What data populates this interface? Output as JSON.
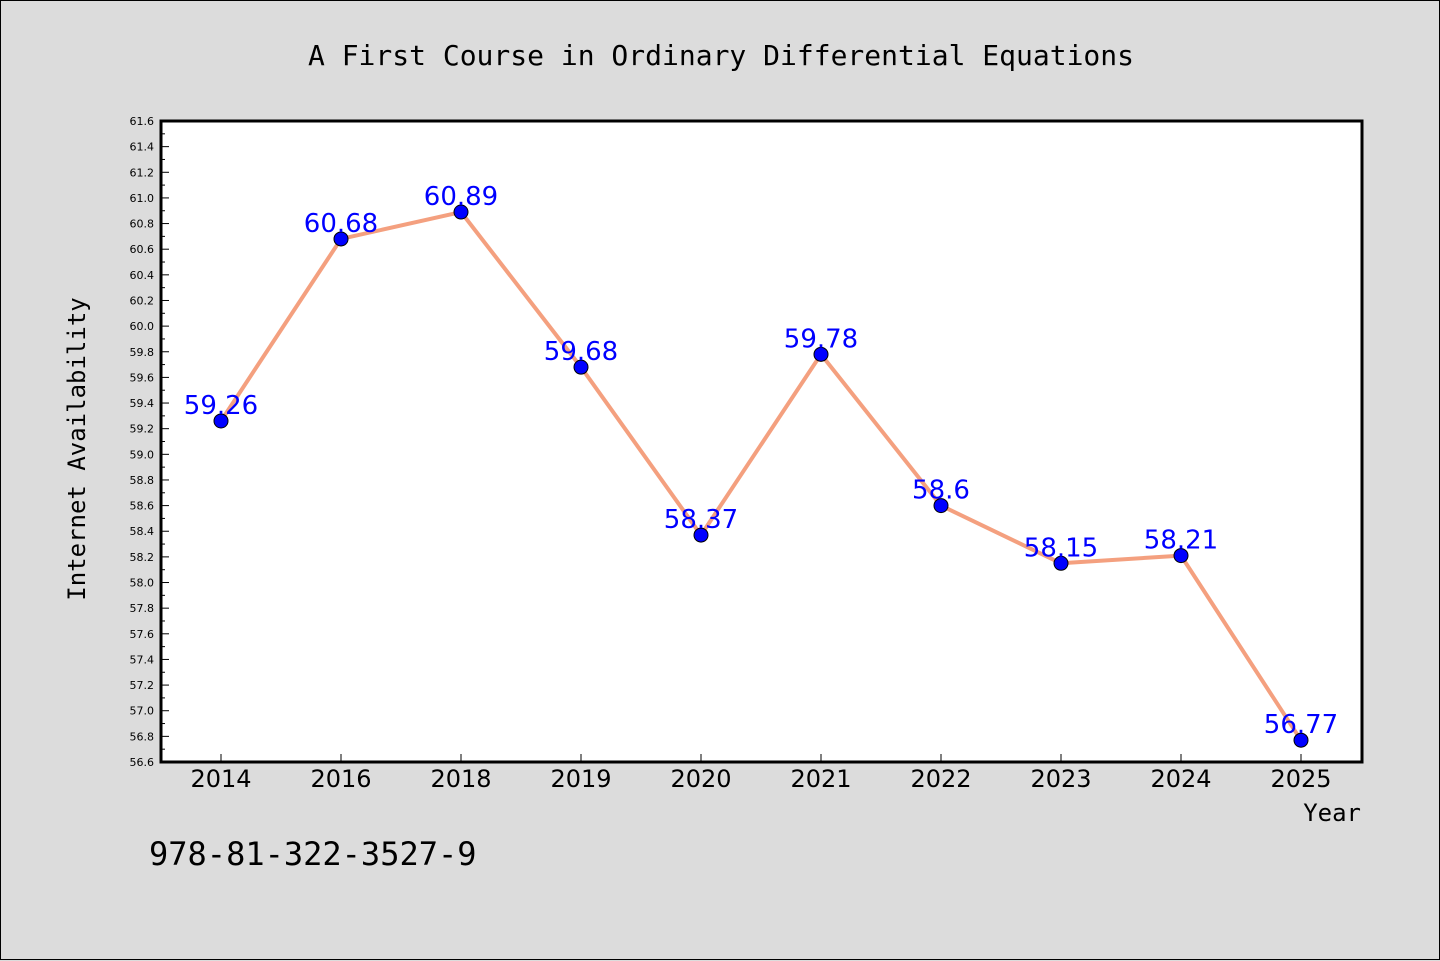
{
  "chart_data": {
    "type": "line",
    "title": "A First Course in Ordinary Differential Equations",
    "xlabel": "Year",
    "ylabel": "Internet Availability",
    "categories": [
      "2014",
      "2016",
      "2018",
      "2019",
      "2020",
      "2021",
      "2022",
      "2023",
      "2024",
      "2025"
    ],
    "series": [
      {
        "values": [
          59.26,
          60.68,
          60.89,
          59.68,
          58.37,
          59.78,
          58.6,
          58.15,
          58.21,
          56.77
        ],
        "labels": [
          "59.26",
          "60.68",
          "60.89",
          "59.68",
          "58.37",
          "59.78",
          "58.6",
          "58.15",
          "58.21",
          "56.77"
        ]
      }
    ],
    "ylim": [
      56.6,
      61.6
    ],
    "yticks": [
      "56.6",
      "56.8",
      "57.0",
      "57.2",
      "57.4",
      "57.6",
      "57.8",
      "58.0",
      "58.2",
      "58.4",
      "58.6",
      "58.8",
      "59.0",
      "59.2",
      "59.4",
      "59.6",
      "59.8",
      "60.0",
      "60.2",
      "60.4",
      "60.6",
      "60.8",
      "61.0",
      "61.2",
      "61.4",
      "61.6"
    ],
    "grid": false,
    "legend": "none",
    "line_color": "#f4a07f",
    "marker_color": "#0000ff",
    "label_color": "#0000ff"
  },
  "footer": {
    "isbn": "978-81-322-3527-9"
  }
}
